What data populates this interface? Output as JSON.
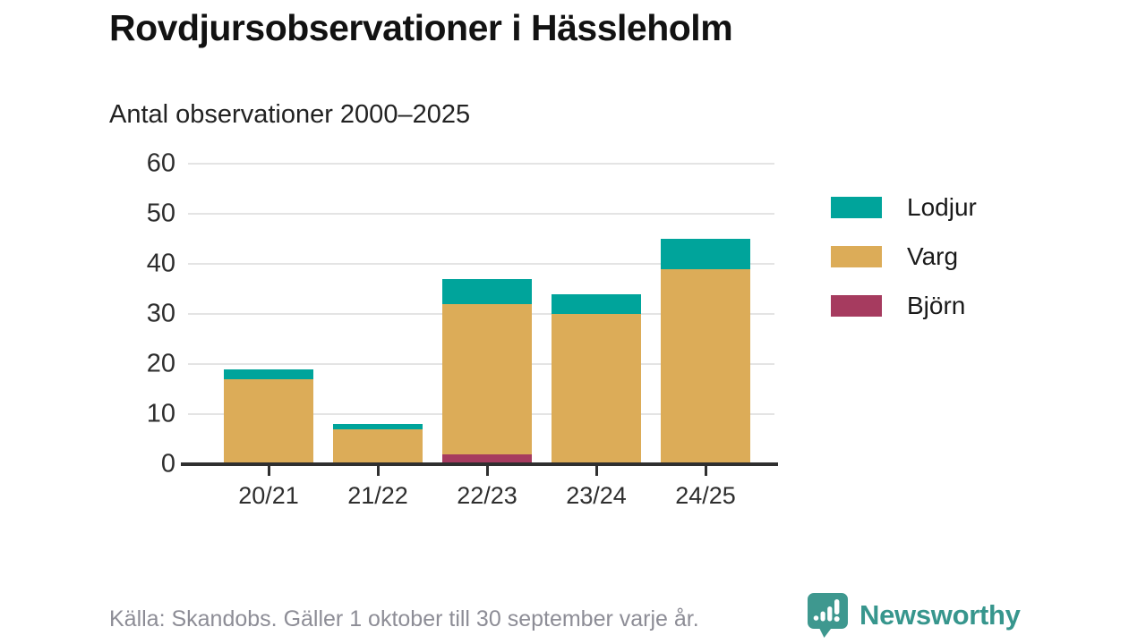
{
  "title": "Rovdjursobservationer i Hässleholm",
  "subtitle": "Antal observationer 2000–2025",
  "footer": {
    "source": "Källa: Skandobs. Gäller 1 oktober till 30 september varje år.",
    "brand": "Newsworthy"
  },
  "colors": {
    "lodjur": "#00a49b",
    "varg": "#dcac58",
    "bjorn": "#a63b5f",
    "grid": "#e4e4e4",
    "axis": "#2f2f2f",
    "text": "#2e2e2e",
    "muted": "#8d8d96",
    "brand": "#3e988f"
  },
  "chart_data": {
    "type": "bar",
    "stacked": true,
    "title": "Rovdjursobservationer i Hässleholm",
    "subtitle": "Antal observationer 2000–2025",
    "categories": [
      "20/21",
      "21/22",
      "22/23",
      "23/24",
      "24/25"
    ],
    "series": [
      {
        "name": "Lodjur",
        "color_key": "lodjur",
        "values": [
          2,
          1,
          5,
          4,
          6
        ]
      },
      {
        "name": "Varg",
        "color_key": "varg",
        "values": [
          17,
          7,
          30,
          30,
          39
        ]
      },
      {
        "name": "Björn",
        "color_key": "bjorn",
        "values": [
          0,
          0,
          2,
          0,
          0
        ]
      }
    ],
    "stack_order_bottom_to_top": [
      "Björn",
      "Varg",
      "Lodjur"
    ],
    "totals": [
      19,
      8,
      37,
      34,
      45
    ],
    "ylim": [
      0,
      60
    ],
    "yticks": [
      0,
      10,
      20,
      30,
      40,
      50,
      60
    ],
    "legend": [
      "Lodjur",
      "Varg",
      "Björn"
    ],
    "legend_position": "right",
    "grid": true
  }
}
